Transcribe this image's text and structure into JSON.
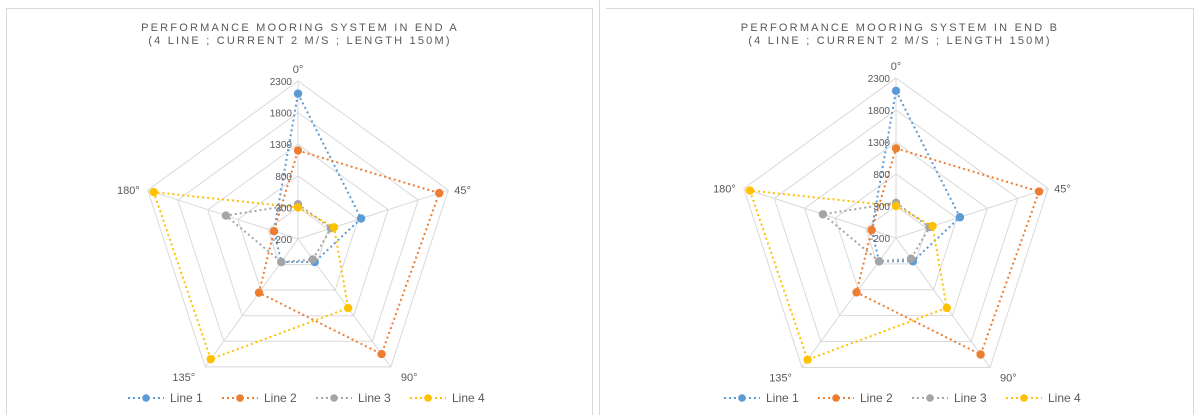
{
  "chart_data": [
    {
      "type": "radar",
      "title": "PERFORMANCE MOORING SYSTEM IN END A",
      "subtitle": "(4 LINE ; CURRENT 2 M/S ; LENGTH 150M)",
      "axes": [
        "0°",
        "45°",
        "90°",
        "135°",
        "180°"
      ],
      "ticks": [
        "-200",
        "300",
        "800",
        "1300",
        "1800",
        "2300"
      ],
      "rmin": -200,
      "rmax": 2300,
      "legend_position": "bottom",
      "series": [
        {
          "name": "Line 1",
          "color": "#5B9BD5",
          "values": [
            2100,
            850,
            250,
            250,
            200
          ]
        },
        {
          "name": "Line 2",
          "color": "#ED7D31",
          "values": [
            1200,
            2150,
            2050,
            850,
            200
          ]
        },
        {
          "name": "Line 3",
          "color": "#A5A5A5",
          "values": [
            350,
            350,
            200,
            250,
            1000
          ]
        },
        {
          "name": "Line 4",
          "color": "#FFC000",
          "values": [
            300,
            400,
            1150,
            2150,
            2200
          ]
        }
      ]
    },
    {
      "type": "radar",
      "title": "PERFORMANCE MOORING SYSTEM IN END B",
      "subtitle": "(4 LINE ; CURRENT 2 M/S ; LENGTH 150M)",
      "axes": [
        "0°",
        "45°",
        "90°",
        "135°",
        "180°"
      ],
      "ticks": [
        "-200",
        "300",
        "800",
        "1300",
        "1800",
        "2300"
      ],
      "rmin": -200,
      "rmax": 2300,
      "legend_position": "bottom",
      "series": [
        {
          "name": "Line 1",
          "color": "#5B9BD5",
          "values": [
            2100,
            850,
            250,
            250,
            200
          ]
        },
        {
          "name": "Line 2",
          "color": "#ED7D31",
          "values": [
            1200,
            2150,
            2050,
            850,
            200
          ]
        },
        {
          "name": "Line 3",
          "color": "#A5A5A5",
          "values": [
            350,
            350,
            200,
            250,
            1000
          ]
        },
        {
          "name": "Line 4",
          "color": "#FFC000",
          "values": [
            300,
            400,
            1150,
            2150,
            2200
          ]
        }
      ]
    }
  ]
}
